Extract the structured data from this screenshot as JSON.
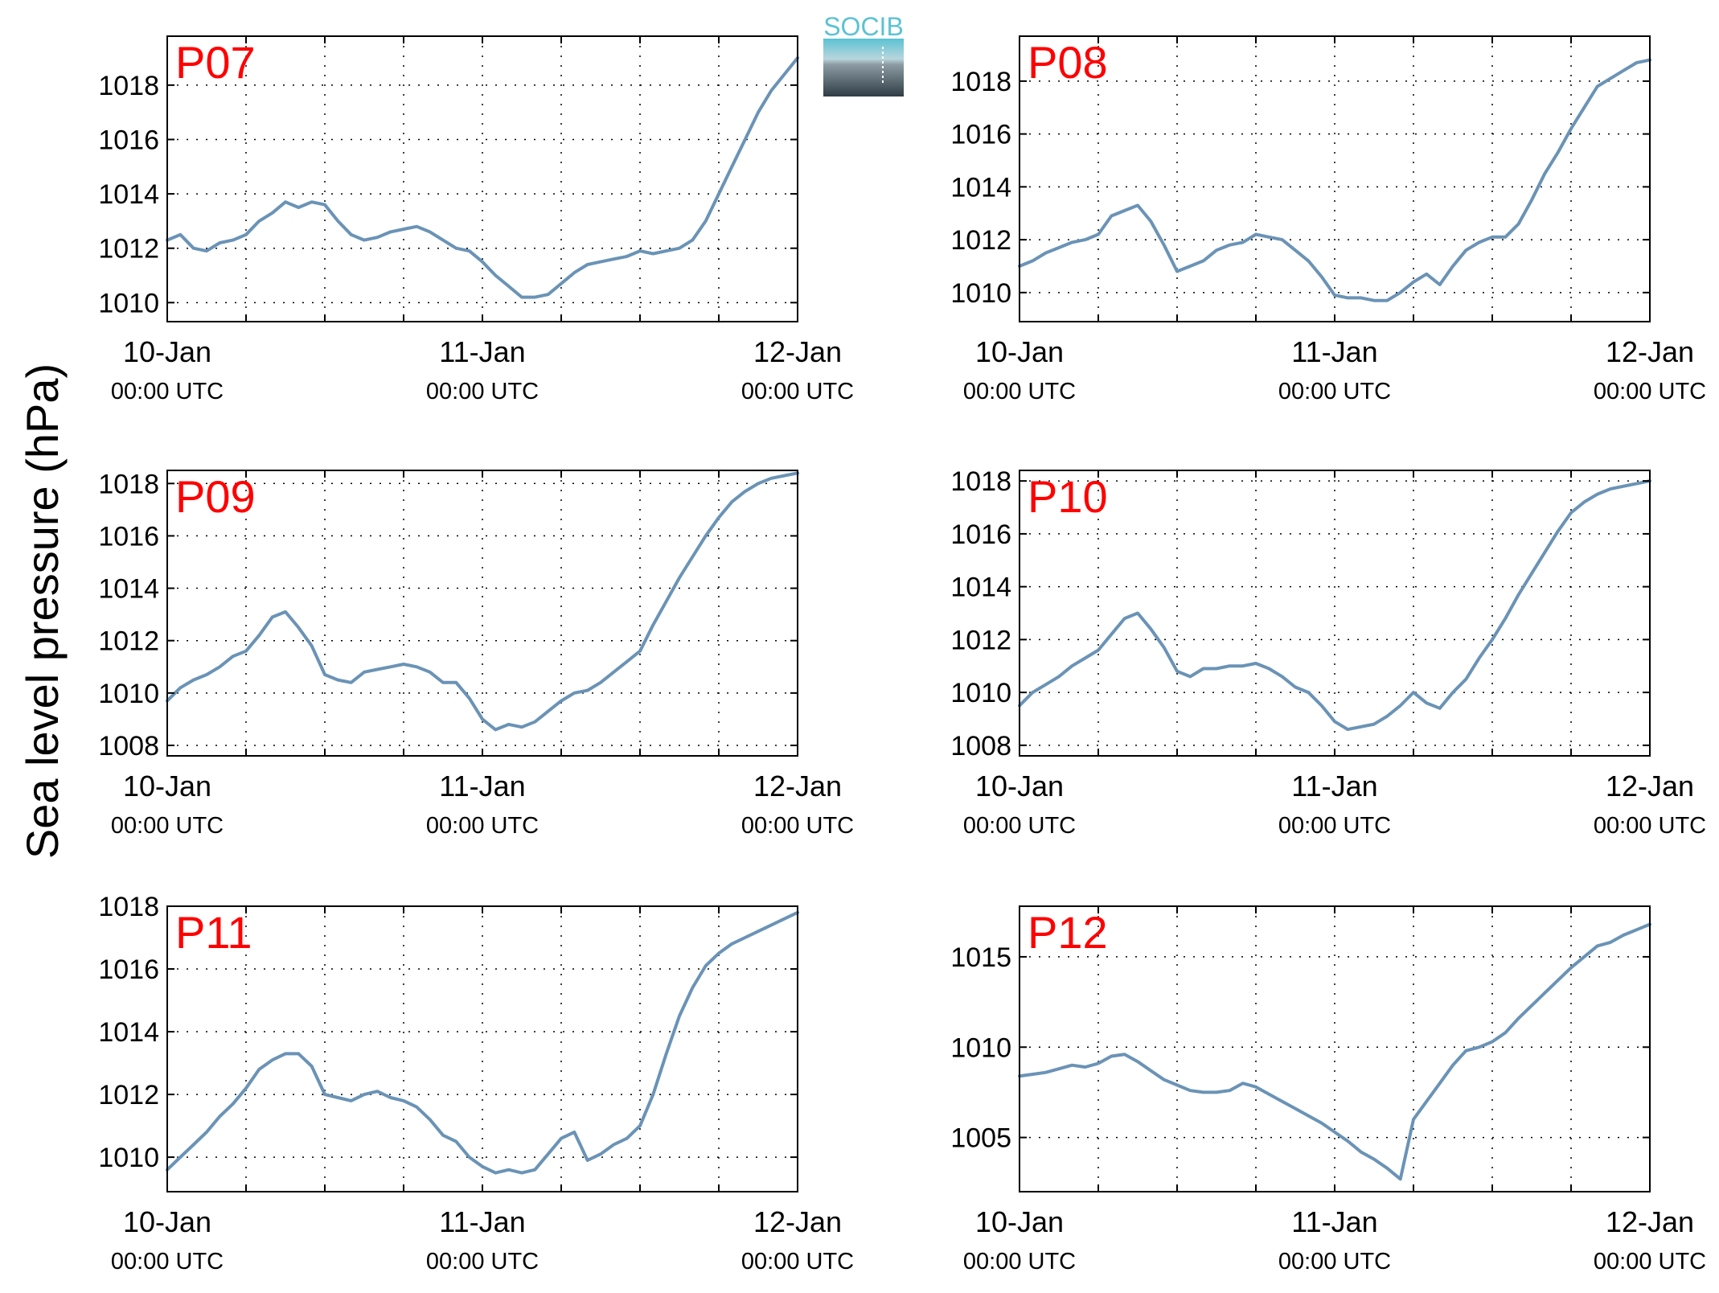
{
  "figure": {
    "ylabel": "Sea level pressure (hPa)",
    "logo_text": "SOCIB",
    "colors": {
      "line": "#6a93b6",
      "panel_label": "#ff0000",
      "grid": "#000000",
      "logo_top": "#5bc2d3",
      "logo_bottom": "#2f3c45"
    }
  },
  "chart_data": [
    {
      "type": "line",
      "panel_label": "P07",
      "x_ticks": [
        {
          "label": "10-Jan",
          "sub": "00:00 UTC"
        },
        {
          "label": "11-Jan",
          "sub": "00:00 UTC"
        },
        {
          "label": "12-Jan",
          "sub": "00:00 UTC"
        }
      ],
      "xlim": [
        "2000-01-10T00:00",
        "2000-01-12T00:00"
      ],
      "ylim": [
        1009.3,
        1019.8
      ],
      "yticks": [
        1010,
        1012,
        1014,
        1016,
        1018
      ],
      "ytick_labels": [
        "1010",
        "1012",
        "1014",
        "1016",
        "1018"
      ],
      "grid": true,
      "series": [
        {
          "hours": [
            0,
            1,
            2,
            3,
            4,
            5,
            6,
            7,
            8,
            9,
            10,
            11,
            12,
            13,
            14,
            15,
            16,
            17,
            18,
            19,
            20,
            21,
            22,
            23,
            24,
            25,
            26,
            27,
            28,
            29,
            30,
            31,
            32,
            33,
            34,
            35,
            36,
            37,
            38,
            39,
            40,
            41,
            42,
            43,
            44,
            45,
            46,
            47,
            48
          ],
          "values": [
            1012.3,
            1012.5,
            1012.0,
            1011.9,
            1012.2,
            1012.3,
            1012.5,
            1013.0,
            1013.3,
            1013.7,
            1013.5,
            1013.7,
            1013.6,
            1013.0,
            1012.5,
            1012.3,
            1012.4,
            1012.6,
            1012.7,
            1012.8,
            1012.6,
            1012.3,
            1012.0,
            1011.9,
            1011.5,
            1011.0,
            1010.6,
            1010.2,
            1010.2,
            1010.3,
            1010.7,
            1011.1,
            1011.4,
            1011.5,
            1011.6,
            1011.7,
            1011.9,
            1011.8,
            1011.9,
            1012.0,
            1012.3,
            1013.0,
            1014.0,
            1015.0,
            1016.0,
            1017.0,
            1017.8,
            1018.4,
            1019.0
          ]
        }
      ]
    },
    {
      "type": "line",
      "panel_label": "P08",
      "x_ticks": [
        {
          "label": "10-Jan",
          "sub": "00:00 UTC"
        },
        {
          "label": "11-Jan",
          "sub": "00:00 UTC"
        },
        {
          "label": "12-Jan",
          "sub": "00:00 UTC"
        }
      ],
      "xlim": [
        "2000-01-10T00:00",
        "2000-01-12T00:00"
      ],
      "ylim": [
        1008.9,
        1019.7
      ],
      "yticks": [
        1010,
        1012,
        1014,
        1016,
        1018
      ],
      "ytick_labels": [
        "1010",
        "1012",
        "1014",
        "1016",
        "1018"
      ],
      "grid": true,
      "series": [
        {
          "hours": [
            0,
            1,
            2,
            3,
            4,
            5,
            6,
            7,
            8,
            9,
            10,
            11,
            12,
            13,
            14,
            15,
            16,
            17,
            18,
            19,
            20,
            21,
            22,
            23,
            24,
            25,
            26,
            27,
            28,
            29,
            30,
            31,
            32,
            33,
            34,
            35,
            36,
            37,
            38,
            39,
            40,
            41,
            42,
            43,
            44,
            45,
            46,
            47,
            48
          ],
          "values": [
            1011.0,
            1011.2,
            1011.5,
            1011.7,
            1011.9,
            1012.0,
            1012.2,
            1012.9,
            1013.1,
            1013.3,
            1012.7,
            1011.8,
            1010.8,
            1011.0,
            1011.2,
            1011.6,
            1011.8,
            1011.9,
            1012.2,
            1012.1,
            1012.0,
            1011.6,
            1011.2,
            1010.6,
            1009.9,
            1009.8,
            1009.8,
            1009.7,
            1009.7,
            1010.0,
            1010.4,
            1010.7,
            1010.3,
            1011.0,
            1011.6,
            1011.9,
            1012.1,
            1012.1,
            1012.6,
            1013.5,
            1014.5,
            1015.3,
            1016.2,
            1017.0,
            1017.8,
            1018.1,
            1018.4,
            1018.7,
            1018.8
          ]
        }
      ]
    },
    {
      "type": "line",
      "panel_label": "P09",
      "x_ticks": [
        {
          "label": "10-Jan",
          "sub": "00:00 UTC"
        },
        {
          "label": "11-Jan",
          "sub": "00:00 UTC"
        },
        {
          "label": "12-Jan",
          "sub": "00:00 UTC"
        }
      ],
      "xlim": [
        "2000-01-10T00:00",
        "2000-01-12T00:00"
      ],
      "ylim": [
        1007.6,
        1018.5
      ],
      "yticks": [
        1008,
        1010,
        1012,
        1014,
        1016,
        1018
      ],
      "ytick_labels": [
        "1008",
        "1010",
        "1012",
        "1014",
        "1016",
        "1018"
      ],
      "grid": true,
      "series": [
        {
          "hours": [
            0,
            1,
            2,
            3,
            4,
            5,
            6,
            7,
            8,
            9,
            10,
            11,
            12,
            13,
            14,
            15,
            16,
            17,
            18,
            19,
            20,
            21,
            22,
            23,
            24,
            25,
            26,
            27,
            28,
            29,
            30,
            31,
            32,
            33,
            34,
            35,
            36,
            37,
            38,
            39,
            40,
            41,
            42,
            43,
            44,
            45,
            46,
            47,
            48
          ],
          "values": [
            1009.7,
            1010.2,
            1010.5,
            1010.7,
            1011.0,
            1011.4,
            1011.6,
            1012.2,
            1012.9,
            1013.1,
            1012.5,
            1011.8,
            1010.7,
            1010.5,
            1010.4,
            1010.8,
            1010.9,
            1011.0,
            1011.1,
            1011.0,
            1010.8,
            1010.4,
            1010.4,
            1009.8,
            1009.0,
            1008.6,
            1008.8,
            1008.7,
            1008.9,
            1009.3,
            1009.7,
            1010.0,
            1010.1,
            1010.4,
            1010.8,
            1011.2,
            1011.6,
            1012.6,
            1013.5,
            1014.4,
            1015.2,
            1016.0,
            1016.7,
            1017.3,
            1017.7,
            1018.0,
            1018.2,
            1018.3,
            1018.4
          ]
        }
      ]
    },
    {
      "type": "line",
      "panel_label": "P10",
      "x_ticks": [
        {
          "label": "10-Jan",
          "sub": "00:00 UTC"
        },
        {
          "label": "11-Jan",
          "sub": "00:00 UTC"
        },
        {
          "label": "12-Jan",
          "sub": "00:00 UTC"
        }
      ],
      "xlim": [
        "2000-01-10T00:00",
        "2000-01-12T00:00"
      ],
      "ylim": [
        1007.6,
        1018.4
      ],
      "yticks": [
        1008,
        1010,
        1012,
        1014,
        1016,
        1018
      ],
      "ytick_labels": [
        "1008",
        "1010",
        "1012",
        "1014",
        "1016",
        "1018"
      ],
      "grid": true,
      "series": [
        {
          "hours": [
            0,
            1,
            2,
            3,
            4,
            5,
            6,
            7,
            8,
            9,
            10,
            11,
            12,
            13,
            14,
            15,
            16,
            17,
            18,
            19,
            20,
            21,
            22,
            23,
            24,
            25,
            26,
            27,
            28,
            29,
            30,
            31,
            32,
            33,
            34,
            35,
            36,
            37,
            38,
            39,
            40,
            41,
            42,
            43,
            44,
            45,
            46,
            47,
            48
          ],
          "values": [
            1009.5,
            1010.0,
            1010.3,
            1010.6,
            1011.0,
            1011.3,
            1011.6,
            1012.2,
            1012.8,
            1013.0,
            1012.4,
            1011.7,
            1010.8,
            1010.6,
            1010.9,
            1010.9,
            1011.0,
            1011.0,
            1011.1,
            1010.9,
            1010.6,
            1010.2,
            1010.0,
            1009.5,
            1008.9,
            1008.6,
            1008.7,
            1008.8,
            1009.1,
            1009.5,
            1010.0,
            1009.6,
            1009.4,
            1010.0,
            1010.5,
            1011.3,
            1012.0,
            1012.8,
            1013.7,
            1014.5,
            1015.3,
            1016.1,
            1016.8,
            1017.2,
            1017.5,
            1017.7,
            1017.8,
            1017.9,
            1018.0
          ]
        }
      ]
    },
    {
      "type": "line",
      "panel_label": "P11",
      "x_ticks": [
        {
          "label": "10-Jan",
          "sub": "00:00 UTC"
        },
        {
          "label": "11-Jan",
          "sub": "00:00 UTC"
        },
        {
          "label": "12-Jan",
          "sub": "00:00 UTC"
        }
      ],
      "xlim": [
        "2000-01-10T00:00",
        "2000-01-12T00:00"
      ],
      "ylim": [
        1008.9,
        1018.0
      ],
      "yticks": [
        1010,
        1012,
        1014,
        1016,
        1018
      ],
      "ytick_labels": [
        "1010",
        "1012",
        "1014",
        "1016",
        "1018"
      ],
      "grid": true,
      "series": [
        {
          "hours": [
            0,
            1,
            2,
            3,
            4,
            5,
            6,
            7,
            8,
            9,
            10,
            11,
            12,
            13,
            14,
            15,
            16,
            17,
            18,
            19,
            20,
            21,
            22,
            23,
            24,
            25,
            26,
            27,
            28,
            29,
            30,
            31,
            32,
            33,
            34,
            35,
            36,
            37,
            38,
            39,
            40,
            41,
            42,
            43,
            44,
            45,
            46,
            47,
            48
          ],
          "values": [
            1009.6,
            1010.0,
            1010.4,
            1010.8,
            1011.3,
            1011.7,
            1012.2,
            1012.8,
            1013.1,
            1013.3,
            1013.3,
            1012.9,
            1012.0,
            1011.9,
            1011.8,
            1012.0,
            1012.1,
            1011.9,
            1011.8,
            1011.6,
            1011.2,
            1010.7,
            1010.5,
            1010.0,
            1009.7,
            1009.5,
            1009.6,
            1009.5,
            1009.6,
            1010.1,
            1010.6,
            1010.8,
            1009.9,
            1010.1,
            1010.4,
            1010.6,
            1011.0,
            1012.0,
            1013.3,
            1014.5,
            1015.4,
            1016.1,
            1016.5,
            1016.8,
            1017.0,
            1017.2,
            1017.4,
            1017.6,
            1017.8
          ]
        }
      ]
    },
    {
      "type": "line",
      "panel_label": "P12",
      "x_ticks": [
        {
          "label": "10-Jan",
          "sub": "00:00 UTC"
        },
        {
          "label": "11-Jan",
          "sub": "00:00 UTC"
        },
        {
          "label": "12-Jan",
          "sub": "00:00 UTC"
        }
      ],
      "xlim": [
        "2000-01-10T00:00",
        "2000-01-12T00:00"
      ],
      "ylim": [
        1002.0,
        1017.8
      ],
      "yticks": [
        1005,
        1010,
        1015
      ],
      "ytick_labels": [
        "1005",
        "1010",
        "1015"
      ],
      "grid": true,
      "series": [
        {
          "hours": [
            0,
            1,
            2,
            3,
            4,
            5,
            6,
            7,
            8,
            9,
            10,
            11,
            12,
            13,
            14,
            15,
            16,
            17,
            18,
            19,
            20,
            21,
            22,
            23,
            24,
            25,
            26,
            27,
            28,
            29,
            30,
            31,
            32,
            33,
            34,
            35,
            36,
            37,
            38,
            39,
            40,
            41,
            42,
            43,
            44,
            45,
            46,
            47,
            48
          ],
          "values": [
            1008.4,
            1008.5,
            1008.6,
            1008.8,
            1009.0,
            1008.9,
            1009.1,
            1009.5,
            1009.6,
            1009.2,
            1008.7,
            1008.2,
            1007.9,
            1007.6,
            1007.5,
            1007.5,
            1007.6,
            1008.0,
            1007.8,
            1007.4,
            1007.0,
            1006.6,
            1006.2,
            1005.8,
            1005.3,
            1004.8,
            1004.2,
            1003.8,
            1003.3,
            1002.7,
            1006.0,
            1007.0,
            1008.0,
            1009.0,
            1009.8,
            1010.0,
            1010.3,
            1010.8,
            1011.6,
            1012.3,
            1013.0,
            1013.7,
            1014.4,
            1015.0,
            1015.6,
            1015.8,
            1016.2,
            1016.5,
            1016.8
          ]
        }
      ]
    }
  ]
}
